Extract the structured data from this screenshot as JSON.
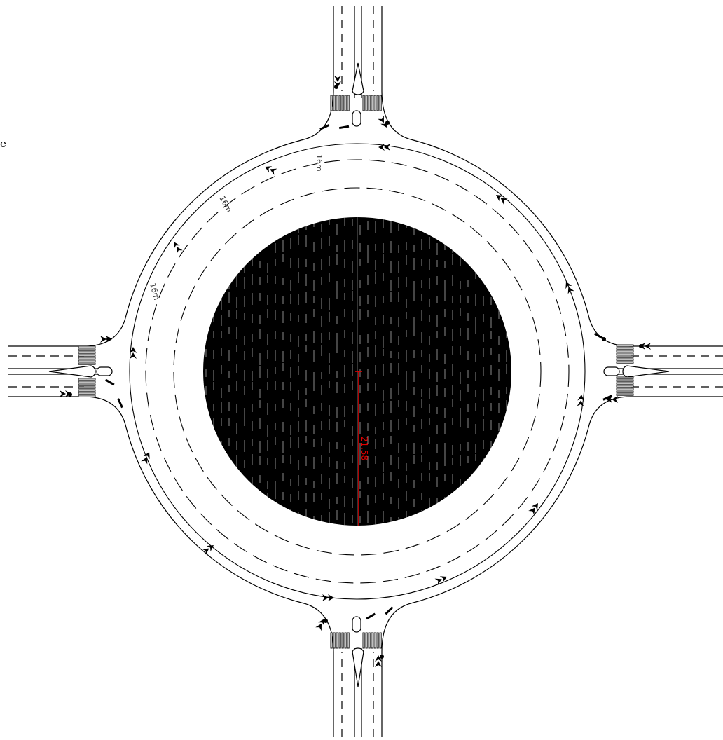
{
  "drawing": {
    "clipped_text": "e",
    "lane_width_labels": [
      "16m",
      "16m",
      "16m"
    ],
    "island_dimension": "21.58",
    "colors": {
      "background": "#ffffff",
      "linework": "#000000",
      "island_fill": "#000000",
      "island_hatch": "#8a8a8a",
      "dimension": "#e00000"
    }
  }
}
